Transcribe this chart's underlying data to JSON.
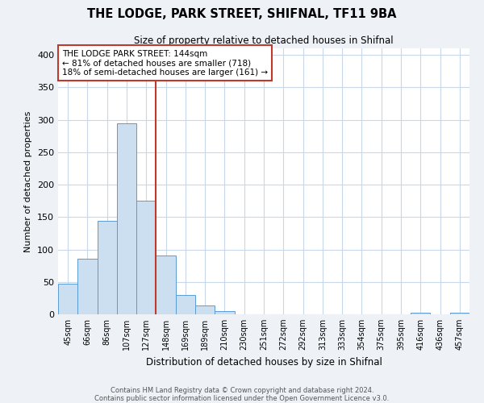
{
  "title": "THE LODGE, PARK STREET, SHIFNAL, TF11 9BA",
  "subtitle": "Size of property relative to detached houses in Shifnal",
  "xlabel": "Distribution of detached houses by size in Shifnal",
  "ylabel": "Number of detached properties",
  "bar_labels": [
    "45sqm",
    "66sqm",
    "86sqm",
    "107sqm",
    "127sqm",
    "148sqm",
    "169sqm",
    "189sqm",
    "210sqm",
    "230sqm",
    "251sqm",
    "272sqm",
    "292sqm",
    "313sqm",
    "333sqm",
    "354sqm",
    "375sqm",
    "395sqm",
    "416sqm",
    "436sqm",
    "457sqm"
  ],
  "bar_values": [
    47,
    86,
    144,
    295,
    175,
    91,
    30,
    14,
    5,
    0,
    0,
    0,
    0,
    0,
    0,
    0,
    0,
    0,
    2,
    0,
    2
  ],
  "bar_color": "#ccdff0",
  "bar_edge_color": "#5b9bd5",
  "vline_color": "#c0392b",
  "vline_x_index": 4.5,
  "annotation_box_text": "THE LODGE PARK STREET: 144sqm\n← 81% of detached houses are smaller (718)\n18% of semi-detached houses are larger (161) →",
  "annotation_box_color": "#c0392b",
  "ylim": [
    0,
    410
  ],
  "yticks": [
    0,
    50,
    100,
    150,
    200,
    250,
    300,
    350,
    400
  ],
  "footer_line1": "Contains HM Land Registry data © Crown copyright and database right 2024.",
  "footer_line2": "Contains public sector information licensed under the Open Government Licence v3.0.",
  "bg_color": "#eef2f7",
  "plot_bg_color": "#ffffff",
  "grid_color": "#c8d8e8",
  "title_fontsize": 10.5,
  "subtitle_fontsize": 8.5
}
